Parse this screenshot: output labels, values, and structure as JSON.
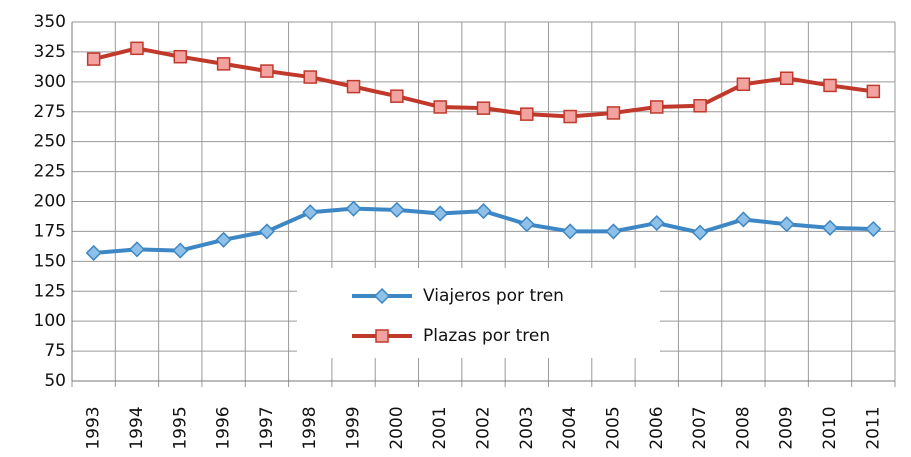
{
  "chart_data": {
    "type": "line",
    "categories": [
      "1993",
      "1994",
      "1995",
      "1996",
      "1997",
      "1998",
      "1999",
      "2000",
      "2001",
      "2002",
      "2003",
      "2004",
      "2005",
      "2006",
      "2007",
      "2008",
      "2009",
      "2010",
      "2011"
    ],
    "series": [
      {
        "name": "Viajeros por tren",
        "color": "#3d87c4",
        "marker_fill": "#8ec0e8",
        "marker": "diamond",
        "values": [
          157,
          160,
          159,
          168,
          175,
          191,
          194,
          193,
          190,
          192,
          181,
          175,
          175,
          182,
          174,
          185,
          181,
          178,
          177
        ]
      },
      {
        "name": "Plazas por tren",
        "color": "#c0392b",
        "marker_fill": "#f2a3a0",
        "marker": "square",
        "values": [
          319,
          328,
          321,
          315,
          309,
          304,
          296,
          288,
          279,
          278,
          273,
          271,
          274,
          279,
          280,
          298,
          303,
          297,
          292
        ]
      }
    ],
    "ylim": [
      50,
      350
    ],
    "yticks": [
      50,
      75,
      100,
      125,
      150,
      175,
      200,
      225,
      250,
      275,
      300,
      325,
      350
    ],
    "grid": true,
    "legend": "center-bottom"
  }
}
